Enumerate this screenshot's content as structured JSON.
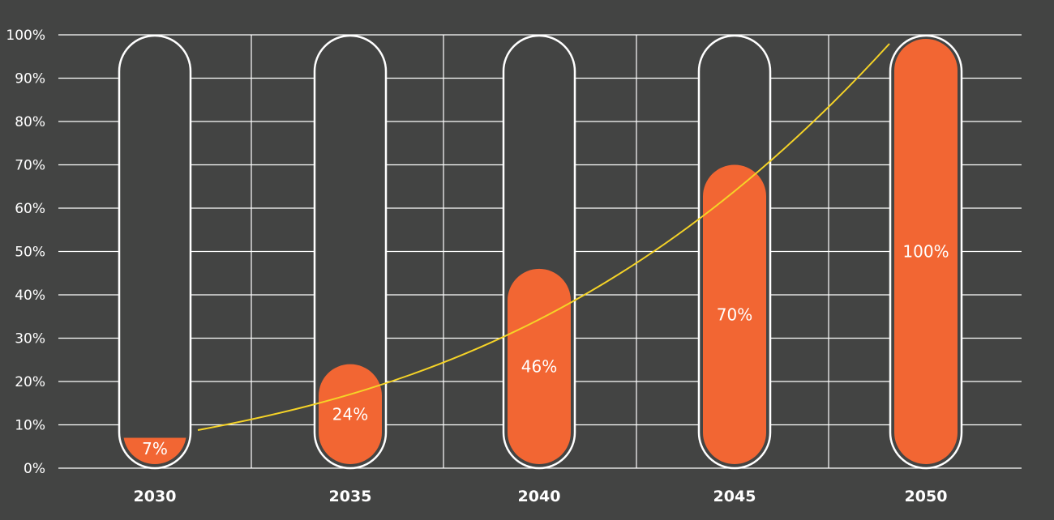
{
  "chart_data": {
    "type": "bar",
    "categories": [
      "2030",
      "2035",
      "2040",
      "2045",
      "2050"
    ],
    "values": [
      7,
      24,
      46,
      70,
      100
    ],
    "data_labels": [
      "7%",
      "24%",
      "46%",
      "70%",
      "100%"
    ],
    "title": "",
    "xlabel": "",
    "ylabel": "",
    "ylim": [
      0,
      100
    ],
    "yticks": [
      "0%",
      "10%",
      "20%",
      "30%",
      "40%",
      "50%",
      "60%",
      "70%",
      "80%",
      "90%",
      "100%"
    ],
    "grid": true,
    "trend_line": {
      "style": "exponential curve",
      "color": "#f5d327"
    },
    "colors": {
      "background": "#434443",
      "fill": "#f26633",
      "outline": "#ffffff",
      "grid": "#ffffff"
    }
  }
}
